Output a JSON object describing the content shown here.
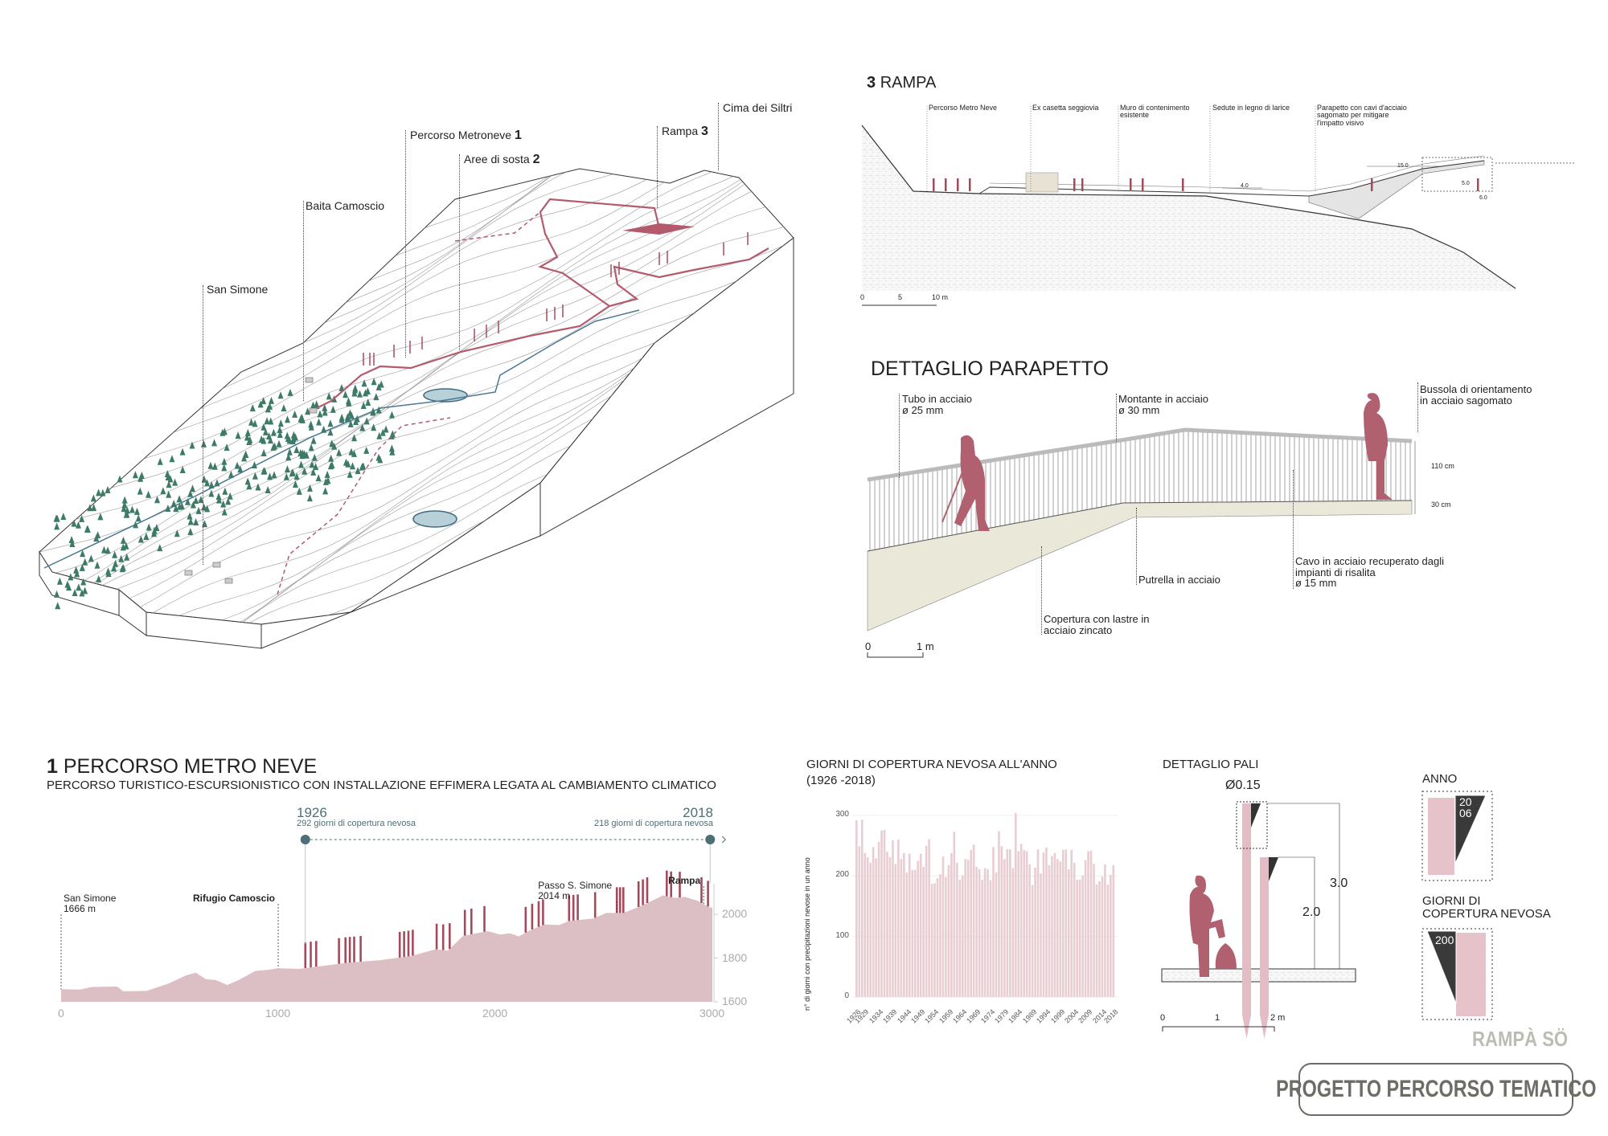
{
  "map": {
    "labels": [
      {
        "text": "Cima dei Siltri"
      },
      {
        "text": "Rampa",
        "num": "3"
      },
      {
        "text": "Percorso Metroneve",
        "num": "1"
      },
      {
        "text": "Aree di sosta",
        "num": "2"
      },
      {
        "text": "Baita Camoscio"
      },
      {
        "text": "San Simone"
      }
    ]
  },
  "rampa": {
    "num": "3",
    "title": "RAMPA",
    "labels": [
      "Percorso Metro Neve",
      "Ex casetta seggiovia",
      "Muro di contenimento esistente",
      "Sedute in legno di larice",
      "Parapetto con cavi d'acciaio sagomato per mitigare l'impatto visivo"
    ],
    "dims": {
      "d1": "15.0",
      "d2": "5.0",
      "d3": "4.0",
      "d4": "6.0"
    },
    "scale": [
      "0",
      "5",
      "10 m"
    ]
  },
  "parapetto": {
    "title": "DETTAGLIO PARAPETTO",
    "labels": {
      "tubo": [
        "Tubo in acciaio",
        "ø 25 mm"
      ],
      "montante": [
        "Montante in acciaio",
        "ø 30 mm"
      ],
      "bussola": [
        "Bussola di orientamento",
        "in acciaio sagomato"
      ],
      "putrella": "Putrella in acciaio",
      "cavo": [
        "Cavo in acciaio recuperato dagli",
        "impianti di risalita",
        "ø 15 mm"
      ],
      "copertura": [
        "Copertura con lastre in",
        "acciaio zincato"
      ]
    },
    "dims": {
      "upper": "110 cm",
      "lower": "30 cm"
    },
    "scale": [
      "0",
      "1 m"
    ]
  },
  "percorso": {
    "num": "1",
    "title": "PERCORSO METRO NEVE",
    "subtitle": "PERCORSO TURISTICO-ESCURSIONISTICO CON INSTALLAZIONE EFFIMERA LEGATA AL CAMBIAMENTO CLIMATICO",
    "start": {
      "year": "1926",
      "text": "292 giorni di copertura nevosa"
    },
    "end": {
      "year": "2018",
      "text": "218 giorni di copertura nevosa"
    }
  },
  "pali": {
    "title": "DETTAGLIO PALI",
    "diameter": "Ø0.15",
    "h_tall": "3.0",
    "h_short": "2.0",
    "scale": [
      "0",
      "1",
      "2 m"
    ]
  },
  "legend": {
    "anno_title": "ANNO",
    "anno_value": [
      "20",
      "06"
    ],
    "giorni_title": [
      "GIORNI DI",
      "COPERTURA NEVOSA"
    ],
    "giorni_value": "200"
  },
  "brand": "RAMPÀ SÖ",
  "board_title": "PROGETTO PERCORSO TEMATICO",
  "colors": {
    "trail": "#b35a6c",
    "pole": "#a54a5c",
    "profile_fill": "#dcbfc4",
    "bar_fill": "#e8cdd2",
    "teal": "#4d6f75",
    "stream": "#4a7893",
    "tree": "#3d7a68",
    "figure": "#b0606f",
    "panel": "#e9e8d9"
  },
  "chart_data": [
    {
      "type": "area",
      "xlim": [
        0,
        3000
      ],
      "ylim": [
        1600,
        2100
      ],
      "xticks": [
        0,
        1000,
        2000,
        3000
      ],
      "yticks": [
        1600,
        1800,
        2000
      ],
      "x": [
        0,
        86,
        143,
        257,
        287,
        394,
        496,
        576,
        621,
        667,
        712,
        765,
        815,
        894,
        962,
        997,
        1099,
        1316,
        1475,
        1611,
        1725,
        1782,
        1851,
        1965,
        2022,
        2067,
        2108,
        2158,
        2226,
        2295,
        2340,
        2454,
        2511,
        2590,
        2670,
        2772,
        2829,
        2874,
        2931,
        2988,
        3000
      ],
      "y": [
        1658,
        1656,
        1668,
        1670,
        1648,
        1650,
        1684,
        1721,
        1733,
        1703,
        1700,
        1677,
        1698,
        1741,
        1747,
        1753,
        1751,
        1778,
        1791,
        1809,
        1840,
        1834,
        1901,
        1923,
        1907,
        1913,
        1899,
        1926,
        1953,
        1951,
        1969,
        1981,
        2006,
        2006,
        2037,
        2086,
        2074,
        2080,
        2062,
        2031,
        2031
      ],
      "poles": [
        1125,
        1150,
        1175,
        1280,
        1310,
        1330,
        1350,
        1380,
        1560,
        1580,
        1600,
        1620,
        1730,
        1760,
        1790,
        1860,
        1890,
        1950,
        2140,
        2170,
        2200,
        2220,
        2340,
        2360,
        2380,
        2460,
        2560,
        2575,
        2590,
        2660,
        2680,
        2700,
        2790,
        2810,
        2850,
        2950,
        2980
      ],
      "annotations": [
        {
          "x": 0,
          "text": [
            "San Simone",
            "1666 m"
          ]
        },
        {
          "x": 1000,
          "text": [
            "Rifugio Camoscio"
          ]
        },
        {
          "x": 2560,
          "text": [
            "Passo S. Simone",
            "2014 m"
          ]
        },
        {
          "x": 2960,
          "text": [
            "Rampa"
          ]
        }
      ]
    },
    {
      "type": "bar",
      "title": "GIORNI DI COPERTURA NEVOSA ALL'ANNO",
      "subtitle": "(1926 -2018)",
      "ylabel": "n° di giorni con precipitazioni nevose in un anno",
      "ylim": [
        0,
        300
      ],
      "yticks": [
        0,
        100,
        200,
        300
      ],
      "grid": true,
      "xtick_labels": [
        "1926",
        "1929",
        "1934",
        "1939",
        "1944",
        "1949",
        "1954",
        "1959",
        "1964",
        "1969",
        "1974",
        "1979",
        "1984",
        "1989",
        "1994",
        "1999",
        "2004",
        "2009",
        "2014",
        "2018"
      ],
      "year_start": 1926,
      "year_end": 2018,
      "values": [
        292,
        249,
        293,
        238,
        231,
        222,
        248,
        229,
        256,
        275,
        276,
        240,
        231,
        259,
        220,
        260,
        228,
        238,
        206,
        237,
        210,
        210,
        225,
        237,
        215,
        250,
        261,
        187,
        188,
        196,
        203,
        232,
        198,
        218,
        238,
        273,
        222,
        194,
        201,
        228,
        227,
        243,
        252,
        215,
        211,
        194,
        213,
        211,
        193,
        248,
        206,
        274,
        249,
        228,
        244,
        244,
        213,
        304,
        241,
        253,
        243,
        241,
        219,
        185,
        214,
        244,
        204,
        239,
        247,
        218,
        233,
        238,
        228,
        224,
        243,
        244,
        211,
        243,
        222,
        194,
        194,
        201,
        226,
        241,
        242,
        220,
        186,
        191,
        199,
        219,
        186,
        202,
        218
      ]
    }
  ]
}
